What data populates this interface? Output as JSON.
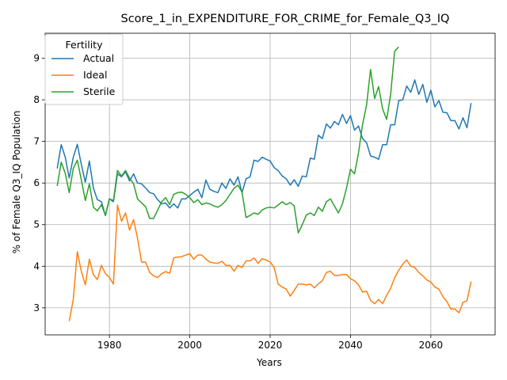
{
  "chart_data": {
    "type": "line",
    "title": "Score_1_in_EXPENDITURE_FOR_CRIME_for_Female_Q3_IQ",
    "xlabel": "Years",
    "ylabel": "% of Female Q3_IQ Population",
    "xlim": [
      1964,
      2076
    ],
    "ylim": [
      2.35,
      9.6
    ],
    "xticks": [
      1980,
      2000,
      2020,
      2040,
      2060
    ],
    "yticks": [
      3,
      4,
      5,
      6,
      7,
      8,
      9
    ],
    "grid": true,
    "legend": {
      "title": "Fertility",
      "placement": "top-left"
    },
    "series": [
      {
        "name": "Actual",
        "color": "#1f77b4",
        "x": [
          1967,
          1968,
          1969,
          1970,
          1971,
          1972,
          1973,
          1974,
          1975,
          1976,
          1977,
          1978,
          1979,
          1980,
          1981,
          1982,
          1983,
          1984,
          1985,
          1986,
          1987,
          1988,
          1989,
          1990,
          1991,
          1992,
          1993,
          1994,
          1995,
          1996,
          1997,
          1998,
          1999,
          2000,
          2001,
          2002,
          2003,
          2004,
          2005,
          2006,
          2007,
          2008,
          2009,
          2010,
          2011,
          2012,
          2013,
          2014,
          2015,
          2016,
          2017,
          2018,
          2019,
          2020,
          2021,
          2022,
          2023,
          2024,
          2025,
          2026,
          2027,
          2028,
          2029,
          2030,
          2031,
          2032,
          2033,
          2034,
          2035,
          2036,
          2037,
          2038,
          2039,
          2040,
          2041,
          2042,
          2043,
          2044,
          2045,
          2046,
          2047,
          2048,
          2049,
          2050,
          2051,
          2052,
          2053,
          2054,
          2055,
          2056,
          2057,
          2058,
          2059,
          2060,
          2061,
          2062,
          2063,
          2064,
          2065,
          2066,
          2067,
          2068,
          2069,
          2070
        ],
        "y": [
          6.35,
          6.92,
          6.62,
          6.12,
          6.62,
          6.93,
          6.45,
          6.02,
          6.53,
          5.88,
          5.6,
          5.55,
          5.22,
          5.62,
          5.55,
          6.22,
          6.15,
          6.27,
          6.05,
          6.22,
          6.0,
          5.98,
          5.88,
          5.77,
          5.74,
          5.6,
          5.5,
          5.52,
          5.4,
          5.5,
          5.4,
          5.62,
          5.62,
          5.7,
          5.78,
          5.85,
          5.65,
          6.07,
          5.85,
          5.8,
          5.77,
          6.0,
          5.87,
          6.1,
          5.95,
          6.15,
          5.77,
          6.1,
          6.15,
          6.55,
          6.52,
          6.62,
          6.57,
          6.53,
          6.37,
          6.3,
          6.17,
          6.1,
          5.95,
          6.08,
          5.92,
          6.17,
          6.15,
          6.6,
          6.57,
          7.15,
          7.07,
          7.42,
          7.32,
          7.48,
          7.4,
          7.65,
          7.43,
          7.62,
          7.27,
          7.37,
          7.07,
          6.97,
          6.65,
          6.62,
          6.57,
          6.92,
          6.92,
          7.4,
          7.4,
          7.98,
          8.0,
          8.33,
          8.18,
          8.48,
          8.13,
          8.37,
          7.94,
          8.23,
          7.83,
          7.98,
          7.7,
          7.69,
          7.5,
          7.5,
          7.3,
          7.57,
          7.33,
          7.92
        ]
      },
      {
        "name": "Ideal",
        "color": "#ff7f0e",
        "x": [
          1970,
          1971,
          1972,
          1973,
          1974,
          1975,
          1976,
          1977,
          1978,
          1979,
          1980,
          1981,
          1982,
          1983,
          1984,
          1985,
          1986,
          1987,
          1988,
          1989,
          1990,
          1991,
          1992,
          1993,
          1994,
          1995,
          1996,
          1997,
          1998,
          1999,
          2000,
          2001,
          2002,
          2003,
          2004,
          2005,
          2006,
          2007,
          2008,
          2009,
          2010,
          2011,
          2012,
          2013,
          2014,
          2015,
          2016,
          2017,
          2018,
          2019,
          2020,
          2021,
          2022,
          2023,
          2024,
          2025,
          2026,
          2027,
          2028,
          2029,
          2030,
          2031,
          2032,
          2033,
          2034,
          2035,
          2036,
          2037,
          2038,
          2039,
          2040,
          2041,
          2042,
          2043,
          2044,
          2045,
          2046,
          2047,
          2048,
          2049,
          2050,
          2051,
          2052,
          2053,
          2054,
          2055,
          2056,
          2057,
          2058,
          2059,
          2060,
          2061,
          2062,
          2063,
          2064,
          2065,
          2066,
          2067,
          2068,
          2069,
          2070
        ],
        "y": [
          2.68,
          3.2,
          4.35,
          3.88,
          3.55,
          4.17,
          3.8,
          3.68,
          4.02,
          3.82,
          3.73,
          3.57,
          5.47,
          5.08,
          5.28,
          4.87,
          5.12,
          4.67,
          4.1,
          4.1,
          3.85,
          3.77,
          3.73,
          3.82,
          3.87,
          3.83,
          4.2,
          4.22,
          4.23,
          4.27,
          4.3,
          4.17,
          4.27,
          4.27,
          4.17,
          4.1,
          4.08,
          4.07,
          4.12,
          4.02,
          4.02,
          3.88,
          4.02,
          3.97,
          4.13,
          4.13,
          4.2,
          4.07,
          4.18,
          4.15,
          4.1,
          3.97,
          3.57,
          3.5,
          3.45,
          3.28,
          3.42,
          3.57,
          3.57,
          3.55,
          3.57,
          3.48,
          3.58,
          3.65,
          3.85,
          3.88,
          3.78,
          3.78,
          3.8,
          3.8,
          3.7,
          3.65,
          3.55,
          3.38,
          3.4,
          3.18,
          3.1,
          3.2,
          3.1,
          3.3,
          3.47,
          3.72,
          3.9,
          4.05,
          4.15,
          4.0,
          3.97,
          3.85,
          3.77,
          3.67,
          3.62,
          3.5,
          3.45,
          3.27,
          3.15,
          2.97,
          2.97,
          2.88,
          3.13,
          3.17,
          3.63
        ]
      },
      {
        "name": "Sterile",
        "color": "#2ca02c",
        "x": [
          1967,
          1968,
          1969,
          1970,
          1971,
          1972,
          1973,
          1974,
          1975,
          1976,
          1977,
          1978,
          1979,
          1980,
          1981,
          1982,
          1983,
          1984,
          1985,
          1986,
          1987,
          1988,
          1989,
          1990,
          1991,
          1992,
          1993,
          1994,
          1995,
          1996,
          1997,
          1998,
          1999,
          2000,
          2001,
          2002,
          2003,
          2004,
          2005,
          2006,
          2007,
          2008,
          2009,
          2010,
          2011,
          2012,
          2013,
          2014,
          2015,
          2016,
          2017,
          2018,
          2019,
          2020,
          2021,
          2022,
          2023,
          2024,
          2025,
          2026,
          2027,
          2028,
          2029,
          2030,
          2031,
          2032,
          2033,
          2034,
          2035,
          2036,
          2037,
          2038,
          2039,
          2040,
          2041,
          2042,
          2043,
          2044,
          2045,
          2046,
          2047,
          2048,
          2049,
          2050,
          2051,
          2052
        ],
        "y": [
          5.93,
          6.5,
          6.23,
          5.77,
          6.35,
          6.55,
          6.08,
          5.58,
          5.98,
          5.42,
          5.33,
          5.48,
          5.22,
          5.62,
          5.58,
          6.3,
          6.17,
          6.3,
          6.12,
          5.98,
          5.62,
          5.52,
          5.43,
          5.15,
          5.15,
          5.35,
          5.55,
          5.65,
          5.48,
          5.73,
          5.77,
          5.78,
          5.73,
          5.65,
          5.53,
          5.6,
          5.48,
          5.52,
          5.5,
          5.45,
          5.42,
          5.48,
          5.58,
          5.73,
          5.87,
          5.95,
          5.78,
          5.17,
          5.22,
          5.28,
          5.25,
          5.35,
          5.4,
          5.42,
          5.4,
          5.47,
          5.55,
          5.48,
          5.53,
          5.45,
          4.8,
          5.0,
          5.23,
          5.28,
          5.22,
          5.42,
          5.32,
          5.55,
          5.62,
          5.45,
          5.28,
          5.5,
          5.88,
          6.33,
          6.22,
          6.73,
          7.4,
          7.87,
          8.73,
          8.03,
          8.32,
          7.78,
          7.53,
          8.13,
          9.17,
          9.27
        ]
      }
    ]
  }
}
